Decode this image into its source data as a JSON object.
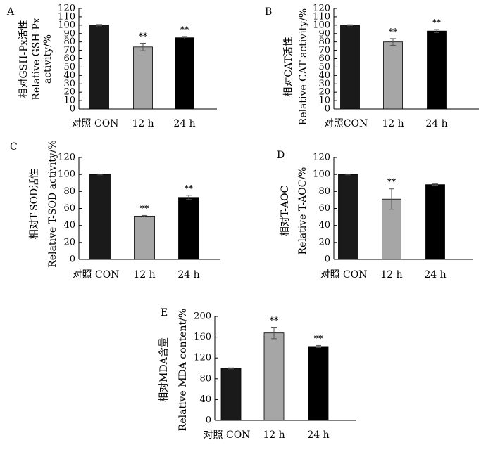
{
  "colors": {
    "con": "#1a1a1a",
    "h12": "#a6a6a6",
    "h24": "#000000",
    "axis": "#000000"
  },
  "chart_data": [
    {
      "panel": "A",
      "type": "bar",
      "categories": [
        "对照 CON",
        "12 h",
        "24 h"
      ],
      "values": [
        100,
        74,
        85
      ],
      "errors": [
        0.8,
        4.5,
        1.5
      ],
      "sig": [
        "",
        "**",
        "**"
      ],
      "ylabel_lines": [
        "相对GSH-Px活性",
        "Relative GSH-Px",
        "activity/%"
      ],
      "yticks": [
        0,
        10,
        20,
        30,
        40,
        50,
        60,
        70,
        80,
        90,
        100,
        110,
        120
      ],
      "ylim": [
        0,
        120
      ],
      "grid": false
    },
    {
      "panel": "B",
      "type": "bar",
      "categories": [
        "对照CON",
        "12 h",
        "24 h"
      ],
      "values": [
        100,
        80,
        93
      ],
      "errors": [
        0.5,
        4,
        1.8
      ],
      "sig": [
        "",
        "**",
        "**"
      ],
      "ylabel_lines": [
        "相对CAT活性",
        "Relative CAT activity/%"
      ],
      "yticks": [
        0,
        10,
        20,
        30,
        40,
        50,
        60,
        70,
        80,
        90,
        100,
        110,
        120
      ],
      "ylim": [
        0,
        120
      ],
      "grid": false
    },
    {
      "panel": "C",
      "type": "bar",
      "categories": [
        "对照 CON",
        "12 h",
        "24 h"
      ],
      "values": [
        100,
        51,
        73
      ],
      "errors": [
        0.5,
        0.8,
        2.5
      ],
      "sig": [
        "",
        "**",
        "**"
      ],
      "ylabel_lines": [
        "相对T-SOD活性",
        "Relative T-SOD activity/%"
      ],
      "yticks": [
        0,
        20,
        40,
        60,
        80,
        100,
        120
      ],
      "ylim": [
        0,
        120
      ],
      "grid": false
    },
    {
      "panel": "D",
      "type": "bar",
      "categories": [
        "对照 CON",
        "12 h",
        "24 h"
      ],
      "values": [
        100,
        71,
        88
      ],
      "errors": [
        0.5,
        12,
        0.8
      ],
      "sig": [
        "",
        "**",
        ""
      ],
      "ylabel_lines": [
        "相对T-AOC",
        "Relative T-AOC/%"
      ],
      "yticks": [
        0,
        20,
        40,
        60,
        80,
        100,
        120
      ],
      "ylim": [
        0,
        120
      ],
      "grid": false
    },
    {
      "panel": "E",
      "type": "bar",
      "categories": [
        "对照 CON",
        "12 h",
        "24 h"
      ],
      "values": [
        100,
        168,
        142
      ],
      "errors": [
        1,
        11,
        2
      ],
      "sig": [
        "",
        "**",
        "**"
      ],
      "ylabel_lines": [
        "相对MDA含量",
        "Relative MDA content/%"
      ],
      "yticks": [
        0,
        40,
        80,
        120,
        160,
        200
      ],
      "ylim": [
        0,
        200
      ],
      "grid": false
    }
  ]
}
